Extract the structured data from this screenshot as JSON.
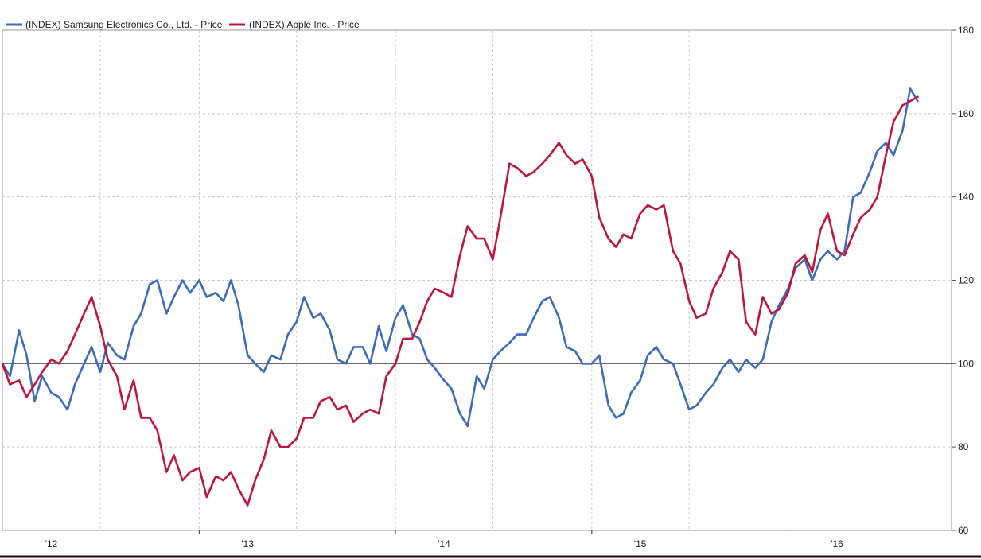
{
  "chart_data": {
    "type": "line",
    "title": "",
    "xlabel": "",
    "ylabel": "",
    "ylim": [
      60,
      180
    ],
    "y_ticks": [
      "60",
      "80",
      "100",
      "120",
      "140",
      "160",
      "180"
    ],
    "y_axis_side": "right",
    "reference_line": 100,
    "x_range": [
      "2012-01-01",
      "2016-10-31"
    ],
    "x_ticks": [
      {
        "label": "'12",
        "date": "2012-01-01"
      },
      {
        "label": "'13",
        "date": "2013-01-01"
      },
      {
        "label": "'14",
        "date": "2014-01-01"
      },
      {
        "label": "'15",
        "date": "2015-01-01"
      },
      {
        "label": "'16",
        "date": "2016-01-01"
      }
    ],
    "grid": true,
    "legend_position": "top-left",
    "series": [
      {
        "name": "(INDEX) Samsung Electronics Co., Ltd. - Price",
        "color": "#3b6bbf",
        "points": [
          [
            "2012-01-01",
            100
          ],
          [
            "2012-01-15",
            97
          ],
          [
            "2012-02-01",
            108
          ],
          [
            "2012-02-15",
            102
          ],
          [
            "2012-03-01",
            91
          ],
          [
            "2012-03-15",
            97
          ],
          [
            "2012-04-01",
            93
          ],
          [
            "2012-04-15",
            92
          ],
          [
            "2012-05-01",
            89
          ],
          [
            "2012-05-15",
            95
          ],
          [
            "2012-06-01",
            100
          ],
          [
            "2012-06-15",
            104
          ],
          [
            "2012-07-01",
            98
          ],
          [
            "2012-07-15",
            105
          ],
          [
            "2012-08-01",
            102
          ],
          [
            "2012-08-15",
            101
          ],
          [
            "2012-09-01",
            109
          ],
          [
            "2012-09-15",
            112
          ],
          [
            "2012-10-01",
            119
          ],
          [
            "2012-10-15",
            120
          ],
          [
            "2012-11-01",
            112
          ],
          [
            "2012-11-15",
            116
          ],
          [
            "2012-12-01",
            120
          ],
          [
            "2012-12-15",
            117
          ],
          [
            "2013-01-01",
            120
          ],
          [
            "2013-01-15",
            116
          ],
          [
            "2013-02-01",
            117
          ],
          [
            "2013-02-15",
            115
          ],
          [
            "2013-03-01",
            120
          ],
          [
            "2013-03-15",
            114
          ],
          [
            "2013-04-01",
            102
          ],
          [
            "2013-04-15",
            100
          ],
          [
            "2013-05-01",
            98
          ],
          [
            "2013-05-15",
            102
          ],
          [
            "2013-06-01",
            101
          ],
          [
            "2013-06-15",
            107
          ],
          [
            "2013-07-01",
            110
          ],
          [
            "2013-07-15",
            116
          ],
          [
            "2013-08-01",
            111
          ],
          [
            "2013-08-15",
            112
          ],
          [
            "2013-09-01",
            108
          ],
          [
            "2013-09-15",
            101
          ],
          [
            "2013-10-01",
            100
          ],
          [
            "2013-10-15",
            104
          ],
          [
            "2013-11-01",
            104
          ],
          [
            "2013-11-15",
            100
          ],
          [
            "2013-12-01",
            109
          ],
          [
            "2013-12-15",
            103
          ],
          [
            "2014-01-01",
            111
          ],
          [
            "2014-01-15",
            114
          ],
          [
            "2014-02-01",
            107
          ],
          [
            "2014-02-15",
            106
          ],
          [
            "2014-03-01",
            101
          ],
          [
            "2014-03-15",
            99
          ],
          [
            "2014-04-01",
            96
          ],
          [
            "2014-04-15",
            94
          ],
          [
            "2014-05-01",
            88
          ],
          [
            "2014-05-15",
            85
          ],
          [
            "2014-06-01",
            97
          ],
          [
            "2014-06-15",
            94
          ],
          [
            "2014-07-01",
            101
          ],
          [
            "2014-07-15",
            103
          ],
          [
            "2014-08-01",
            105
          ],
          [
            "2014-08-15",
            107
          ],
          [
            "2014-09-01",
            107
          ],
          [
            "2014-09-15",
            111
          ],
          [
            "2014-10-01",
            115
          ],
          [
            "2014-10-15",
            116
          ],
          [
            "2014-11-01",
            111
          ],
          [
            "2014-11-15",
            104
          ],
          [
            "2014-12-01",
            103
          ],
          [
            "2014-12-15",
            100
          ],
          [
            "2015-01-01",
            100
          ],
          [
            "2015-01-15",
            102
          ],
          [
            "2015-02-01",
            90
          ],
          [
            "2015-02-15",
            87
          ],
          [
            "2015-03-01",
            88
          ],
          [
            "2015-03-15",
            93
          ],
          [
            "2015-04-01",
            96
          ],
          [
            "2015-04-15",
            102
          ],
          [
            "2015-05-01",
            104
          ],
          [
            "2015-05-15",
            101
          ],
          [
            "2015-06-01",
            100
          ],
          [
            "2015-06-15",
            95
          ],
          [
            "2015-07-01",
            89
          ],
          [
            "2015-07-15",
            90
          ],
          [
            "2015-08-01",
            93
          ],
          [
            "2015-08-15",
            95
          ],
          [
            "2015-09-01",
            99
          ],
          [
            "2015-09-15",
            101
          ],
          [
            "2015-10-01",
            98
          ],
          [
            "2015-10-15",
            101
          ],
          [
            "2015-11-01",
            99
          ],
          [
            "2015-11-15",
            101
          ],
          [
            "2015-12-01",
            110
          ],
          [
            "2015-12-15",
            114
          ],
          [
            "2016-01-01",
            118
          ],
          [
            "2016-01-15",
            123
          ],
          [
            "2016-02-01",
            125
          ],
          [
            "2016-02-15",
            120
          ],
          [
            "2016-03-01",
            125
          ],
          [
            "2016-03-15",
            127
          ],
          [
            "2016-04-01",
            125
          ],
          [
            "2016-04-15",
            127
          ],
          [
            "2016-05-01",
            140
          ],
          [
            "2016-05-15",
            141
          ],
          [
            "2016-06-01",
            146
          ],
          [
            "2016-06-15",
            151
          ],
          [
            "2016-07-01",
            153
          ],
          [
            "2016-07-15",
            150
          ],
          [
            "2016-08-01",
            156
          ],
          [
            "2016-08-15",
            166
          ],
          [
            "2016-08-29",
            163
          ]
        ]
      },
      {
        "name": "(INDEX) Apple Inc. - Price",
        "color": "#c0143c",
        "points": [
          [
            "2012-01-01",
            100
          ],
          [
            "2012-01-15",
            95
          ],
          [
            "2012-02-01",
            96
          ],
          [
            "2012-02-15",
            92
          ],
          [
            "2012-03-01",
            95
          ],
          [
            "2012-03-15",
            98
          ],
          [
            "2012-04-01",
            101
          ],
          [
            "2012-04-15",
            100
          ],
          [
            "2012-05-01",
            103
          ],
          [
            "2012-05-15",
            107
          ],
          [
            "2012-06-01",
            112
          ],
          [
            "2012-06-15",
            116
          ],
          [
            "2012-07-01",
            109
          ],
          [
            "2012-07-15",
            101
          ],
          [
            "2012-08-01",
            97
          ],
          [
            "2012-08-15",
            89
          ],
          [
            "2012-09-01",
            96
          ],
          [
            "2012-09-15",
            87
          ],
          [
            "2012-10-01",
            87
          ],
          [
            "2012-10-15",
            84
          ],
          [
            "2012-11-01",
            74
          ],
          [
            "2012-11-15",
            78
          ],
          [
            "2012-12-01",
            72
          ],
          [
            "2012-12-15",
            74
          ],
          [
            "2013-01-01",
            75
          ],
          [
            "2013-01-15",
            68
          ],
          [
            "2013-02-01",
            73
          ],
          [
            "2013-02-15",
            72
          ],
          [
            "2013-03-01",
            74
          ],
          [
            "2013-03-15",
            70
          ],
          [
            "2013-04-01",
            66
          ],
          [
            "2013-04-15",
            72
          ],
          [
            "2013-05-01",
            77
          ],
          [
            "2013-05-15",
            84
          ],
          [
            "2013-06-01",
            80
          ],
          [
            "2013-06-15",
            80
          ],
          [
            "2013-07-01",
            82
          ],
          [
            "2013-07-15",
            87
          ],
          [
            "2013-08-01",
            87
          ],
          [
            "2013-08-15",
            91
          ],
          [
            "2013-09-01",
            92
          ],
          [
            "2013-09-15",
            89
          ],
          [
            "2013-10-01",
            90
          ],
          [
            "2013-10-15",
            86
          ],
          [
            "2013-11-01",
            88
          ],
          [
            "2013-11-15",
            89
          ],
          [
            "2013-12-01",
            88
          ],
          [
            "2013-12-15",
            97
          ],
          [
            "2014-01-01",
            100
          ],
          [
            "2014-01-15",
            106
          ],
          [
            "2014-02-01",
            106
          ],
          [
            "2014-02-15",
            110
          ],
          [
            "2014-03-01",
            115
          ],
          [
            "2014-03-15",
            118
          ],
          [
            "2014-04-01",
            117
          ],
          [
            "2014-04-15",
            116
          ],
          [
            "2014-05-01",
            126
          ],
          [
            "2014-05-15",
            133
          ],
          [
            "2014-06-01",
            130
          ],
          [
            "2014-06-15",
            130
          ],
          [
            "2014-07-01",
            125
          ],
          [
            "2014-07-15",
            135
          ],
          [
            "2014-08-01",
            148
          ],
          [
            "2014-08-15",
            147
          ],
          [
            "2014-09-01",
            145
          ],
          [
            "2014-09-15",
            146
          ],
          [
            "2014-10-01",
            148
          ],
          [
            "2014-10-15",
            150
          ],
          [
            "2014-11-01",
            153
          ],
          [
            "2014-11-15",
            150
          ],
          [
            "2014-12-01",
            148
          ],
          [
            "2014-12-15",
            149
          ],
          [
            "2015-01-01",
            145
          ],
          [
            "2015-01-15",
            135
          ],
          [
            "2015-02-01",
            130
          ],
          [
            "2015-02-15",
            128
          ],
          [
            "2015-03-01",
            131
          ],
          [
            "2015-03-15",
            130
          ],
          [
            "2015-04-01",
            136
          ],
          [
            "2015-04-15",
            138
          ],
          [
            "2015-05-01",
            137
          ],
          [
            "2015-05-15",
            138
          ],
          [
            "2015-06-01",
            127
          ],
          [
            "2015-06-15",
            124
          ],
          [
            "2015-07-01",
            115
          ],
          [
            "2015-07-15",
            111
          ],
          [
            "2015-08-01",
            112
          ],
          [
            "2015-08-15",
            118
          ],
          [
            "2015-09-01",
            122
          ],
          [
            "2015-09-15",
            127
          ],
          [
            "2015-10-01",
            125
          ],
          [
            "2015-10-15",
            110
          ],
          [
            "2015-11-01",
            107
          ],
          [
            "2015-11-15",
            116
          ],
          [
            "2015-12-01",
            112
          ],
          [
            "2015-12-15",
            113
          ],
          [
            "2016-01-01",
            117
          ],
          [
            "2016-01-15",
            124
          ],
          [
            "2016-02-01",
            126
          ],
          [
            "2016-02-15",
            122
          ],
          [
            "2016-03-01",
            132
          ],
          [
            "2016-03-15",
            136
          ],
          [
            "2016-04-01",
            127
          ],
          [
            "2016-04-15",
            126
          ],
          [
            "2016-05-01",
            131
          ],
          [
            "2016-05-15",
            135
          ],
          [
            "2016-06-01",
            137
          ],
          [
            "2016-06-15",
            140
          ],
          [
            "2016-07-01",
            150
          ],
          [
            "2016-07-15",
            158
          ],
          [
            "2016-08-01",
            162
          ],
          [
            "2016-08-15",
            163
          ],
          [
            "2016-08-29",
            164
          ]
        ]
      }
    ]
  }
}
